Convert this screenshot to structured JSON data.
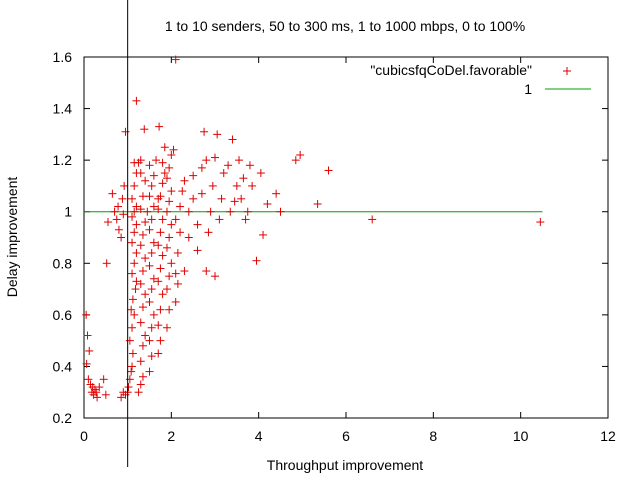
{
  "chart_data": {
    "type": "scatter",
    "title": "1 to 10 senders, 50 to 300 ms, 1 to 1000 mbps, 0 to 100%",
    "xlabel": "Throughput improvement",
    "ylabel": "Delay improvement",
    "xlim": [
      0,
      12
    ],
    "ylim": [
      0.2,
      1.6
    ],
    "xticks": [
      0,
      2,
      4,
      6,
      8,
      10,
      12
    ],
    "yticks": [
      0.2,
      0.4,
      0.6,
      0.8,
      1,
      1.2,
      1.4,
      1.6
    ],
    "xtick_labels": [
      "0",
      "2",
      "4",
      "6",
      "8",
      "10",
      "12"
    ],
    "ytick_labels": [
      "0.2",
      "0.4",
      "0.6",
      "0.8",
      "1",
      "1.2",
      "1.4",
      "1.6"
    ],
    "grid": false,
    "legend_position": "top-right",
    "vertical_reference_x": 1,
    "series": [
      {
        "name": "\"cubicsfqCoDel.favorable\"",
        "marker": "+",
        "color": "#e00000",
        "points": [
          [
            0.05,
            0.6
          ],
          [
            0.08,
            0.52
          ],
          [
            0.12,
            0.46
          ],
          [
            0.06,
            0.41
          ],
          [
            0.1,
            0.35
          ],
          [
            0.15,
            0.33
          ],
          [
            0.18,
            0.3
          ],
          [
            0.22,
            0.29
          ],
          [
            0.25,
            0.31
          ],
          [
            0.3,
            0.28
          ],
          [
            0.35,
            0.32
          ],
          [
            0.45,
            0.35
          ],
          [
            0.5,
            0.29
          ],
          [
            0.2,
            0.32
          ],
          [
            0.28,
            0.3
          ],
          [
            0.55,
            0.96
          ],
          [
            0.52,
            0.8
          ],
          [
            0.65,
            1.07
          ],
          [
            0.7,
            1.0
          ],
          [
            0.75,
            0.97
          ],
          [
            0.78,
            1.02
          ],
          [
            0.8,
            0.93
          ],
          [
            0.85,
            0.9
          ],
          [
            0.88,
            1.05
          ],
          [
            0.9,
            0.99
          ],
          [
            0.92,
            1.1
          ],
          [
            0.95,
            1.31
          ],
          [
            0.95,
            0.29
          ],
          [
            0.85,
            0.28
          ],
          [
            0.9,
            0.3
          ],
          [
            1.0,
            0.3
          ],
          [
            1.02,
            0.32
          ],
          [
            1.05,
            0.35
          ],
          [
            1.08,
            0.38
          ],
          [
            1.1,
            0.4
          ],
          [
            1.12,
            0.45
          ],
          [
            1.05,
            0.5
          ],
          [
            1.1,
            0.55
          ],
          [
            1.15,
            0.6
          ],
          [
            1.08,
            0.62
          ],
          [
            1.12,
            0.66
          ],
          [
            1.18,
            0.7
          ],
          [
            1.2,
            0.73
          ],
          [
            1.1,
            0.76
          ],
          [
            1.15,
            0.8
          ],
          [
            1.2,
            0.84
          ],
          [
            1.1,
            0.88
          ],
          [
            1.15,
            0.92
          ],
          [
            1.2,
            0.95
          ],
          [
            1.1,
            0.98
          ],
          [
            1.15,
            1.0
          ],
          [
            1.2,
            1.02
          ],
          [
            1.1,
            1.05
          ],
          [
            1.15,
            1.1
          ],
          [
            1.2,
            1.15
          ],
          [
            1.15,
            1.19
          ],
          [
            1.25,
            1.19
          ],
          [
            1.2,
            1.43
          ],
          [
            1.3,
            1.2
          ],
          [
            1.25,
            0.3
          ],
          [
            1.3,
            0.33
          ],
          [
            1.35,
            0.36
          ],
          [
            1.3,
            0.42
          ],
          [
            1.35,
            0.48
          ],
          [
            1.4,
            0.52
          ],
          [
            1.3,
            0.57
          ],
          [
            1.35,
            0.63
          ],
          [
            1.4,
            0.68
          ],
          [
            1.3,
            0.72
          ],
          [
            1.35,
            0.77
          ],
          [
            1.4,
            0.82
          ],
          [
            1.3,
            0.87
          ],
          [
            1.35,
            0.91
          ],
          [
            1.4,
            0.96
          ],
          [
            1.3,
            1.01
          ],
          [
            1.35,
            1.06
          ],
          [
            1.4,
            1.12
          ],
          [
            1.3,
            1.15
          ],
          [
            1.38,
            1.32
          ],
          [
            1.45,
            1.0
          ],
          [
            1.5,
            0.38
          ],
          [
            1.55,
            0.44
          ],
          [
            1.5,
            0.5
          ],
          [
            1.55,
            0.55
          ],
          [
            1.6,
            0.6
          ],
          [
            1.5,
            0.65
          ],
          [
            1.55,
            0.7
          ],
          [
            1.6,
            0.74
          ],
          [
            1.5,
            0.79
          ],
          [
            1.55,
            0.84
          ],
          [
            1.6,
            0.88
          ],
          [
            1.5,
            0.93
          ],
          [
            1.55,
            0.97
          ],
          [
            1.6,
            1.02
          ],
          [
            1.5,
            1.06
          ],
          [
            1.55,
            1.1
          ],
          [
            1.6,
            1.14
          ],
          [
            1.5,
            1.18
          ],
          [
            1.65,
            1.2
          ],
          [
            1.7,
            1.05
          ],
          [
            1.7,
            0.45
          ],
          [
            1.75,
            0.5
          ],
          [
            1.7,
            0.56
          ],
          [
            1.75,
            0.62
          ],
          [
            1.8,
            0.68
          ],
          [
            1.7,
            0.73
          ],
          [
            1.75,
            0.78
          ],
          [
            1.8,
            0.83
          ],
          [
            1.7,
            0.87
          ],
          [
            1.75,
            0.92
          ],
          [
            1.8,
            0.97
          ],
          [
            1.7,
            1.01
          ],
          [
            1.75,
            1.06
          ],
          [
            1.8,
            1.11
          ],
          [
            1.85,
            1.15
          ],
          [
            1.8,
            1.19
          ],
          [
            1.85,
            1.25
          ],
          [
            1.72,
            1.33
          ],
          [
            1.9,
            0.55
          ],
          [
            1.95,
            0.62
          ],
          [
            1.9,
            0.7
          ],
          [
            1.95,
            0.75
          ],
          [
            2.0,
            0.8
          ],
          [
            1.9,
            0.86
          ],
          [
            1.95,
            0.9
          ],
          [
            2.0,
            0.95
          ],
          [
            1.9,
            1.0
          ],
          [
            1.95,
            1.04
          ],
          [
            2.0,
            1.08
          ],
          [
            1.9,
            1.13
          ],
          [
            1.95,
            1.17
          ],
          [
            2.0,
            1.22
          ],
          [
            2.05,
            1.24
          ],
          [
            2.1,
            1.59
          ],
          [
            2.1,
            0.65
          ],
          [
            2.15,
            0.72
          ],
          [
            2.1,
            0.76
          ],
          [
            2.15,
            0.84
          ],
          [
            2.2,
            0.92
          ],
          [
            2.1,
            0.97
          ],
          [
            2.2,
            1.02
          ],
          [
            2.25,
            1.08
          ],
          [
            2.3,
            1.12
          ],
          [
            2.3,
            0.77
          ],
          [
            2.4,
            0.9
          ],
          [
            2.4,
            1.0
          ],
          [
            2.5,
            1.05
          ],
          [
            2.5,
            1.14
          ],
          [
            2.6,
            0.85
          ],
          [
            2.6,
            0.95
          ],
          [
            2.7,
            1.07
          ],
          [
            2.7,
            1.17
          ],
          [
            2.75,
            1.31
          ],
          [
            2.8,
            1.2
          ],
          [
            2.8,
            0.77
          ],
          [
            2.85,
            0.92
          ],
          [
            2.9,
            1.0
          ],
          [
            2.95,
            1.1
          ],
          [
            3.0,
            1.21
          ],
          [
            3.0,
            0.75
          ],
          [
            3.05,
            1.3
          ],
          [
            3.1,
            0.97
          ],
          [
            3.15,
            1.05
          ],
          [
            3.2,
            1.15
          ],
          [
            3.3,
            1.18
          ],
          [
            3.35,
            1.0
          ],
          [
            3.4,
            1.28
          ],
          [
            3.45,
            1.04
          ],
          [
            3.5,
            1.1
          ],
          [
            3.55,
            1.2
          ],
          [
            3.6,
            1.05
          ],
          [
            3.65,
            1.13
          ],
          [
            3.7,
            0.97
          ],
          [
            3.75,
            1.0
          ],
          [
            3.8,
            1.18
          ],
          [
            3.85,
            1.1
          ],
          [
            3.95,
            0.81
          ],
          [
            4.05,
            1.15
          ],
          [
            4.1,
            0.91
          ],
          [
            4.2,
            1.03
          ],
          [
            4.4,
            1.07
          ],
          [
            4.5,
            1.0
          ],
          [
            4.85,
            1.2
          ],
          [
            4.95,
            1.22
          ],
          [
            5.35,
            1.03
          ],
          [
            5.6,
            1.16
          ],
          [
            6.6,
            0.97
          ],
          [
            10.45,
            0.96
          ]
        ]
      }
    ],
    "reference_lines": [
      {
        "name": "1",
        "type": "horizontal",
        "y": 1,
        "x_range": [
          0,
          10.5
        ],
        "color": "#00a000"
      }
    ]
  }
}
